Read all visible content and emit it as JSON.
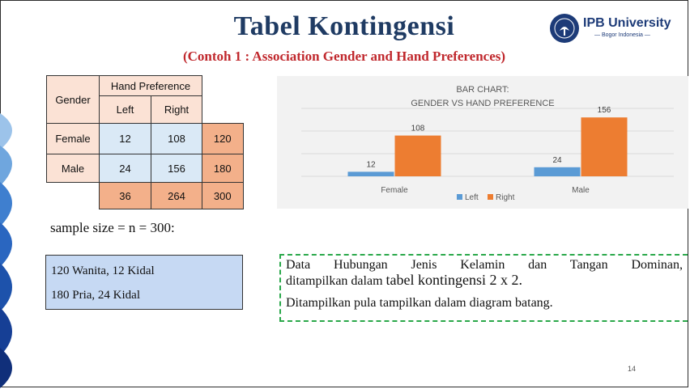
{
  "slide": {
    "title": "Tabel Kontingensi",
    "subtitle": "(Contoh 1 : Association Gender and Hand Preferences)",
    "page_number": "14"
  },
  "logo": {
    "name": "IPB University",
    "tagline": "— Bogor Indonesia —"
  },
  "table": {
    "gender_header": "Gender",
    "group_header": "Hand Preference",
    "col_left": "Left",
    "col_right": "Right",
    "rows": [
      {
        "label": "Female",
        "left": "12",
        "right": "108",
        "total": "120"
      },
      {
        "label": "Male",
        "left": "24",
        "right": "156",
        "total": "180"
      }
    ],
    "totals": {
      "left": "36",
      "right": "264",
      "grand": "300"
    }
  },
  "sample_text": "sample size = n = 300:",
  "summary_lines": [
    "120 Wanita, 12 Kidal",
    "180 Pria, 24 Kidal"
  ],
  "description": {
    "line1": "Data Hubungan Jenis Kelamin dan Tangan Dominan,",
    "line2a": "ditampilkan dalam ",
    "line2b": "tabel kontingensi 2 x 2.",
    "line3": "Ditampilkan pula tampilkan dalam diagram batang."
  },
  "colors": {
    "title": "#1f3b63",
    "subtitle": "#c0282d",
    "left_series": "#5b9bd5",
    "right_series": "#ed7d31",
    "dash_border": "#2aa84a"
  },
  "chart_data": {
    "type": "bar",
    "title": "BAR CHART:",
    "subtitle": "GENDER VS HAND PREFERENCE",
    "categories": [
      "Female",
      "Male"
    ],
    "series": [
      {
        "name": "Left",
        "values": [
          12,
          24
        ],
        "color": "#5b9bd5"
      },
      {
        "name": "Right",
        "values": [
          108,
          156
        ],
        "color": "#ed7d31"
      }
    ],
    "ylim": [
      0,
      180
    ],
    "grid": true,
    "legend": "bottom",
    "data_labels": true
  }
}
